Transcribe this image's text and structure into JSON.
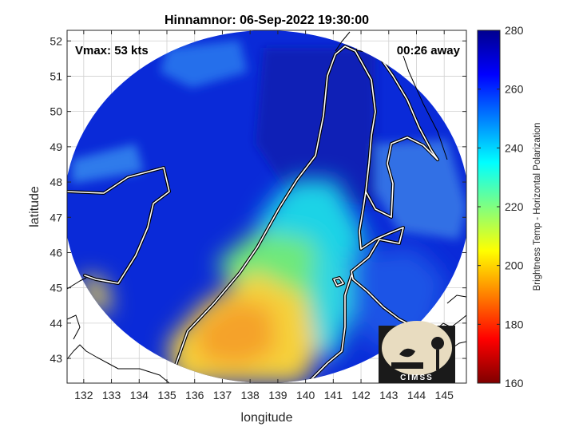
{
  "chart_data": {
    "type": "heatmap",
    "title": "Hinnamnor: 06-Sep-2022 19:30:00",
    "annotations": {
      "vmax": "Vmax: 53 kts",
      "time_away": "00:26 away"
    },
    "xlabel": "longitude",
    "ylabel": "latitude",
    "xlim": [
      131.4,
      145.8
    ],
    "ylim": [
      42.3,
      52.3
    ],
    "xticks": [
      132,
      133,
      134,
      135,
      136,
      137,
      138,
      139,
      140,
      141,
      142,
      143,
      144,
      145
    ],
    "yticks": [
      43,
      44,
      45,
      46,
      47,
      48,
      49,
      50,
      51,
      52
    ],
    "grid": true,
    "colorbar": {
      "label": "Brightness Temp - Horizontal Polarization",
      "range": [
        160,
        280
      ],
      "ticks": [
        160,
        180,
        200,
        220,
        240,
        260,
        280
      ],
      "colormap": [
        "#7f0000",
        "#ff0000",
        "#ff8000",
        "#ffff00",
        "#80ff80",
        "#00ffff",
        "#0080ff",
        "#0000ff",
        "#00008f"
      ]
    },
    "swath": {
      "center": [
        138.6,
        47.3
      ],
      "radius_lon": 7.3,
      "radius_lat": 5.0,
      "field_samples": [
        {
          "region": "open sea west and north",
          "value": 262
        },
        {
          "region": "warm region over southern Sea of Japan",
          "value": 205
        },
        {
          "region": "central cloud band",
          "value": 236
        },
        {
          "region": "Sakhalin / Okhotsk",
          "value": 262
        }
      ]
    },
    "logo_text": "CIMSS"
  }
}
